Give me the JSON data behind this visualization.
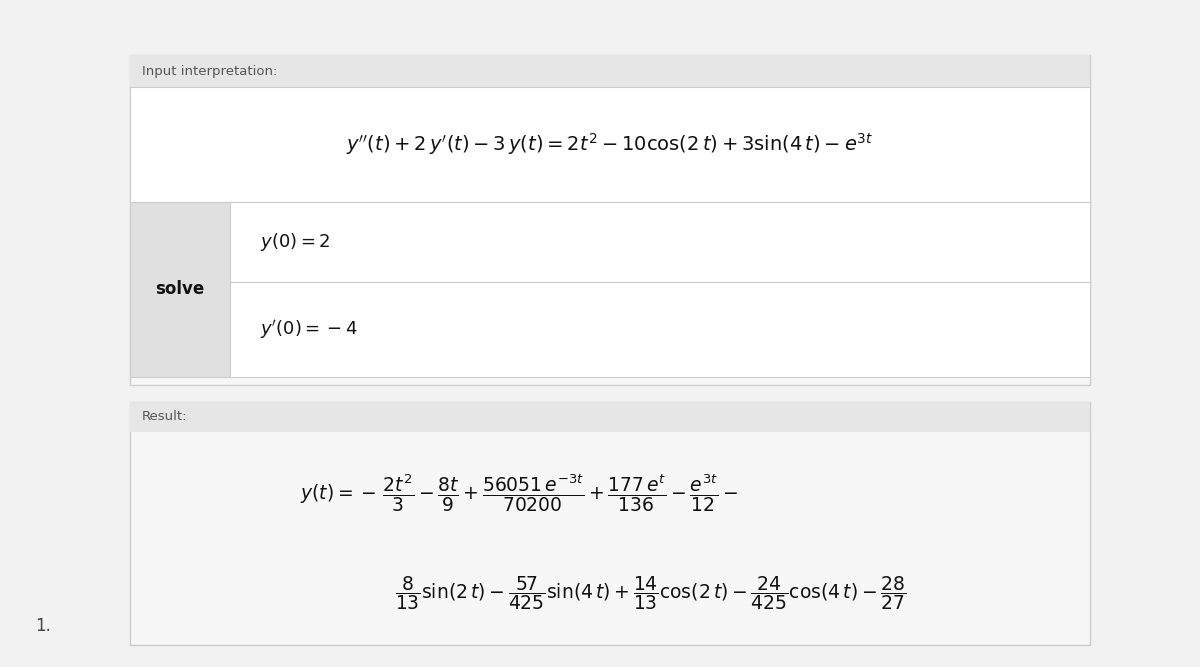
{
  "bg_color": "#f2f2f2",
  "panel_bg": "#ffffff",
  "header_bg": "#e6e6e6",
  "solve_bg": "#e0e0e0",
  "border_color": "#cccccc",
  "text_color": "#111111",
  "label_color": "#555555",
  "fig_width": 12.0,
  "fig_height": 6.67,
  "label_number": "1.",
  "section1_label": "Input interpretation:",
  "section2_label": "Result:",
  "solve_word": "solve"
}
